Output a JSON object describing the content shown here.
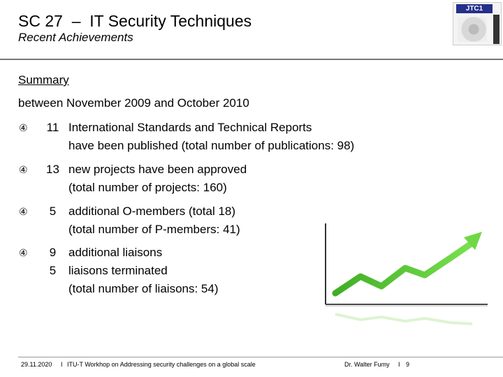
{
  "header": {
    "title": "SC 27  –  IT Security Techniques",
    "subtitle": "Recent Achievements",
    "logo_text": "JTC1"
  },
  "summary_label": "Summary",
  "period": "between November 2009 and October 2010",
  "bullets": [
    {
      "numbers": [
        "11"
      ],
      "lines": [
        "International Standards and Technical Reports",
        "have been published (total number of publications: 98)"
      ]
    },
    {
      "numbers": [
        "13"
      ],
      "lines": [
        "new projects have been approved",
        "(total number of projects: 160)"
      ]
    },
    {
      "numbers": [
        "5"
      ],
      "lines": [
        "additional O-members (total 18)",
        "(total number of P-members: 41)"
      ]
    },
    {
      "numbers": [
        "9",
        "5"
      ],
      "lines": [
        "additional liaisons",
        "liaisons terminated",
        "(total number of liaisons: 54)"
      ]
    }
  ],
  "bullet_icon": "④",
  "footer": {
    "date": "29.11.2020",
    "separator": "I",
    "event": "ITU-T Workhop on Addressing security challenges on a global scale",
    "author": "Dr. Walter Fumy",
    "page": "9"
  },
  "colors": {
    "arrow": "#55cc33",
    "accent": "#24308a"
  }
}
